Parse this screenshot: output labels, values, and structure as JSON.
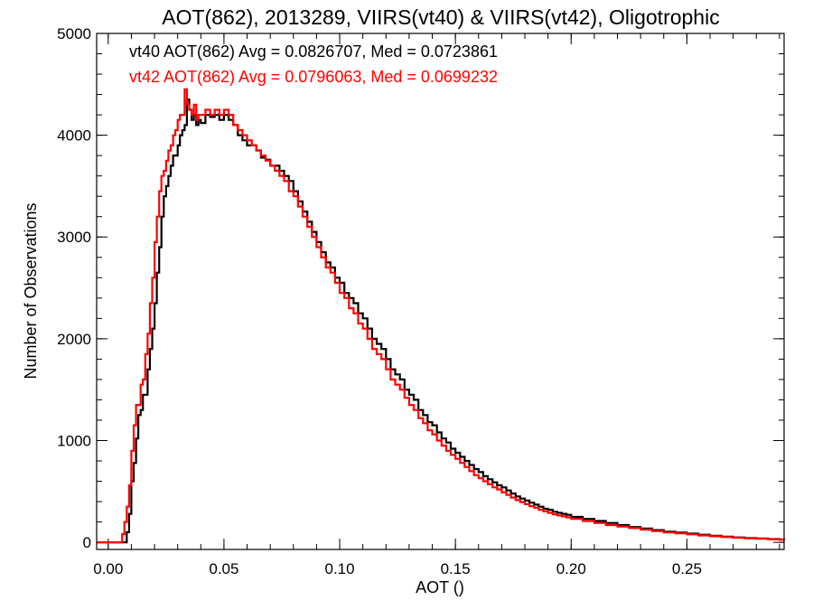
{
  "chart_data": {
    "type": "line",
    "title": "AOT(862), 2013289, VIIRS(vt40) & VIIRS(vt42), Oligotrophic",
    "xlabel": "AOT ()",
    "ylabel": "Number of Observations",
    "xlim": [
      -0.005,
      0.292
    ],
    "ylim": [
      -70,
      5000
    ],
    "x_ticks": [
      0.0,
      0.05,
      0.1,
      0.15,
      0.2,
      0.25
    ],
    "x_tick_labels": [
      "0.00",
      "0.05",
      "0.10",
      "0.15",
      "0.20",
      "0.25"
    ],
    "y_ticks": [
      0,
      1000,
      2000,
      3000,
      4000,
      5000
    ],
    "y_tick_labels": [
      "0",
      "1000",
      "2000",
      "3000",
      "4000",
      "5000"
    ],
    "grid": false,
    "legend_position": "top-left",
    "series": [
      {
        "name": "vt40 AOT(862) Avg = 0.0826707, Med = 0.0723861",
        "color": "#000000",
        "points": [
          [
            -0.005,
            0
          ],
          [
            0.007,
            0
          ],
          [
            0.008,
            100
          ],
          [
            0.009,
            280
          ],
          [
            0.01,
            600
          ],
          [
            0.011,
            780
          ],
          [
            0.012,
            1020
          ],
          [
            0.013,
            1250
          ],
          [
            0.014,
            1300
          ],
          [
            0.015,
            1450
          ],
          [
            0.016,
            1450
          ],
          [
            0.017,
            1700
          ],
          [
            0.018,
            1900
          ],
          [
            0.019,
            2100
          ],
          [
            0.02,
            2350
          ],
          [
            0.021,
            2650
          ],
          [
            0.022,
            2900
          ],
          [
            0.023,
            3200
          ],
          [
            0.024,
            3400
          ],
          [
            0.025,
            3500
          ],
          [
            0.026,
            3600
          ],
          [
            0.027,
            3700
          ],
          [
            0.028,
            3800
          ],
          [
            0.029,
            3800
          ],
          [
            0.03,
            3900
          ],
          [
            0.031,
            4000
          ],
          [
            0.032,
            4050
          ],
          [
            0.033,
            4100
          ],
          [
            0.034,
            4350
          ],
          [
            0.035,
            4250
          ],
          [
            0.036,
            4150
          ],
          [
            0.037,
            4200
          ],
          [
            0.038,
            4100
          ],
          [
            0.039,
            4150
          ],
          [
            0.04,
            4120
          ],
          [
            0.042,
            4200
          ],
          [
            0.044,
            4180
          ],
          [
            0.046,
            4200
          ],
          [
            0.048,
            4150
          ],
          [
            0.05,
            4200
          ],
          [
            0.052,
            4150
          ],
          [
            0.054,
            4100
          ],
          [
            0.056,
            4000
          ],
          [
            0.058,
            3950
          ],
          [
            0.06,
            3900
          ],
          [
            0.062,
            3900
          ],
          [
            0.064,
            3850
          ],
          [
            0.066,
            3780
          ],
          [
            0.068,
            3760
          ],
          [
            0.07,
            3700
          ],
          [
            0.072,
            3700
          ],
          [
            0.074,
            3650
          ],
          [
            0.076,
            3600
          ],
          [
            0.078,
            3550
          ],
          [
            0.08,
            3450
          ],
          [
            0.082,
            3350
          ],
          [
            0.084,
            3250
          ],
          [
            0.086,
            3150
          ],
          [
            0.088,
            3050
          ],
          [
            0.09,
            2950
          ],
          [
            0.092,
            2850
          ],
          [
            0.094,
            2750
          ],
          [
            0.096,
            2700
          ],
          [
            0.098,
            2600
          ],
          [
            0.1,
            2550
          ],
          [
            0.102,
            2450
          ],
          [
            0.104,
            2400
          ],
          [
            0.106,
            2350
          ],
          [
            0.108,
            2250
          ],
          [
            0.11,
            2200
          ],
          [
            0.112,
            2100
          ],
          [
            0.114,
            2000
          ],
          [
            0.116,
            1950
          ],
          [
            0.118,
            1900
          ],
          [
            0.12,
            1800
          ],
          [
            0.122,
            1700
          ],
          [
            0.124,
            1650
          ],
          [
            0.126,
            1600
          ],
          [
            0.128,
            1500
          ],
          [
            0.13,
            1450
          ],
          [
            0.132,
            1400
          ],
          [
            0.134,
            1300
          ],
          [
            0.136,
            1250
          ],
          [
            0.138,
            1180
          ],
          [
            0.14,
            1150
          ],
          [
            0.142,
            1080
          ],
          [
            0.144,
            1020
          ],
          [
            0.146,
            980
          ],
          [
            0.148,
            920
          ],
          [
            0.15,
            880
          ],
          [
            0.152,
            840
          ],
          [
            0.154,
            800
          ],
          [
            0.156,
            760
          ],
          [
            0.158,
            720
          ],
          [
            0.16,
            690
          ],
          [
            0.162,
            650
          ],
          [
            0.164,
            620
          ],
          [
            0.166,
            590
          ],
          [
            0.168,
            560
          ],
          [
            0.17,
            540
          ],
          [
            0.172,
            510
          ],
          [
            0.174,
            480
          ],
          [
            0.176,
            450
          ],
          [
            0.178,
            430
          ],
          [
            0.18,
            410
          ],
          [
            0.182,
            390
          ],
          [
            0.184,
            370
          ],
          [
            0.186,
            350
          ],
          [
            0.188,
            330
          ],
          [
            0.19,
            320
          ],
          [
            0.192,
            300
          ],
          [
            0.194,
            290
          ],
          [
            0.196,
            280
          ],
          [
            0.198,
            270
          ],
          [
            0.2,
            250
          ],
          [
            0.205,
            230
          ],
          [
            0.21,
            210
          ],
          [
            0.215,
            190
          ],
          [
            0.22,
            170
          ],
          [
            0.225,
            150
          ],
          [
            0.23,
            135
          ],
          [
            0.235,
            120
          ],
          [
            0.24,
            105
          ],
          [
            0.245,
            95
          ],
          [
            0.25,
            85
          ],
          [
            0.255,
            75
          ],
          [
            0.26,
            65
          ],
          [
            0.265,
            55
          ],
          [
            0.27,
            48
          ],
          [
            0.275,
            42
          ],
          [
            0.28,
            37
          ],
          [
            0.285,
            32
          ],
          [
            0.29,
            28
          ],
          [
            0.292,
            25
          ]
        ]
      },
      {
        "name": "vt42 AOT(862) Avg = 0.0796063, Med = 0.0699232",
        "color": "#ff0000",
        "points": [
          [
            -0.005,
            0
          ],
          [
            0.005,
            0
          ],
          [
            0.006,
            80
          ],
          [
            0.007,
            200
          ],
          [
            0.008,
            350
          ],
          [
            0.009,
            560
          ],
          [
            0.01,
            900
          ],
          [
            0.011,
            1150
          ],
          [
            0.012,
            1350
          ],
          [
            0.013,
            1350
          ],
          [
            0.014,
            1550
          ],
          [
            0.015,
            1600
          ],
          [
            0.016,
            1850
          ],
          [
            0.017,
            2050
          ],
          [
            0.018,
            2350
          ],
          [
            0.019,
            2600
          ],
          [
            0.02,
            2950
          ],
          [
            0.021,
            3200
          ],
          [
            0.022,
            3450
          ],
          [
            0.023,
            3600
          ],
          [
            0.024,
            3650
          ],
          [
            0.025,
            3750
          ],
          [
            0.026,
            3850
          ],
          [
            0.027,
            3900
          ],
          [
            0.028,
            4000
          ],
          [
            0.029,
            4050
          ],
          [
            0.03,
            4150
          ],
          [
            0.031,
            4200
          ],
          [
            0.032,
            4200
          ],
          [
            0.033,
            4450
          ],
          [
            0.034,
            4300
          ],
          [
            0.035,
            4250
          ],
          [
            0.036,
            4200
          ],
          [
            0.037,
            4300
          ],
          [
            0.038,
            4150
          ],
          [
            0.039,
            4200
          ],
          [
            0.04,
            4200
          ],
          [
            0.042,
            4250
          ],
          [
            0.044,
            4200
          ],
          [
            0.046,
            4250
          ],
          [
            0.048,
            4200
          ],
          [
            0.05,
            4250
          ],
          [
            0.052,
            4200
          ],
          [
            0.054,
            4100
          ],
          [
            0.056,
            4050
          ],
          [
            0.058,
            4000
          ],
          [
            0.06,
            3950
          ],
          [
            0.062,
            3900
          ],
          [
            0.064,
            3850
          ],
          [
            0.066,
            3800
          ],
          [
            0.068,
            3750
          ],
          [
            0.07,
            3700
          ],
          [
            0.072,
            3650
          ],
          [
            0.074,
            3600
          ],
          [
            0.076,
            3550
          ],
          [
            0.078,
            3450
          ],
          [
            0.08,
            3400
          ],
          [
            0.082,
            3300
          ],
          [
            0.084,
            3200
          ],
          [
            0.086,
            3100
          ],
          [
            0.088,
            3000
          ],
          [
            0.09,
            2900
          ],
          [
            0.092,
            2800
          ],
          [
            0.094,
            2700
          ],
          [
            0.096,
            2650
          ],
          [
            0.098,
            2550
          ],
          [
            0.1,
            2450
          ],
          [
            0.102,
            2400
          ],
          [
            0.104,
            2300
          ],
          [
            0.106,
            2250
          ],
          [
            0.108,
            2150
          ],
          [
            0.11,
            2100
          ],
          [
            0.112,
            2000
          ],
          [
            0.114,
            1900
          ],
          [
            0.116,
            1850
          ],
          [
            0.118,
            1800
          ],
          [
            0.12,
            1700
          ],
          [
            0.122,
            1600
          ],
          [
            0.124,
            1550
          ],
          [
            0.126,
            1500
          ],
          [
            0.128,
            1420
          ],
          [
            0.13,
            1350
          ],
          [
            0.132,
            1300
          ],
          [
            0.134,
            1220
          ],
          [
            0.136,
            1170
          ],
          [
            0.138,
            1100
          ],
          [
            0.14,
            1060
          ],
          [
            0.142,
            1000
          ],
          [
            0.144,
            950
          ],
          [
            0.146,
            900
          ],
          [
            0.148,
            860
          ],
          [
            0.15,
            820
          ],
          [
            0.152,
            780
          ],
          [
            0.154,
            740
          ],
          [
            0.156,
            700
          ],
          [
            0.158,
            660
          ],
          [
            0.16,
            630
          ],
          [
            0.162,
            600
          ],
          [
            0.164,
            570
          ],
          [
            0.166,
            540
          ],
          [
            0.168,
            520
          ],
          [
            0.17,
            490
          ],
          [
            0.172,
            465
          ],
          [
            0.174,
            440
          ],
          [
            0.176,
            415
          ],
          [
            0.178,
            395
          ],
          [
            0.18,
            375
          ],
          [
            0.182,
            355
          ],
          [
            0.184,
            340
          ],
          [
            0.186,
            320
          ],
          [
            0.188,
            305
          ],
          [
            0.19,
            290
          ],
          [
            0.192,
            275
          ],
          [
            0.194,
            265
          ],
          [
            0.196,
            255
          ],
          [
            0.198,
            245
          ],
          [
            0.2,
            230
          ],
          [
            0.205,
            210
          ],
          [
            0.21,
            190
          ],
          [
            0.215,
            170
          ],
          [
            0.22,
            155
          ],
          [
            0.225,
            140
          ],
          [
            0.23,
            125
          ],
          [
            0.235,
            110
          ],
          [
            0.24,
            97
          ],
          [
            0.245,
            88
          ],
          [
            0.25,
            78
          ],
          [
            0.255,
            68
          ],
          [
            0.26,
            60
          ],
          [
            0.265,
            52
          ],
          [
            0.27,
            45
          ],
          [
            0.275,
            40
          ],
          [
            0.28,
            35
          ],
          [
            0.285,
            30
          ],
          [
            0.29,
            26
          ],
          [
            0.292,
            24
          ]
        ]
      }
    ]
  }
}
